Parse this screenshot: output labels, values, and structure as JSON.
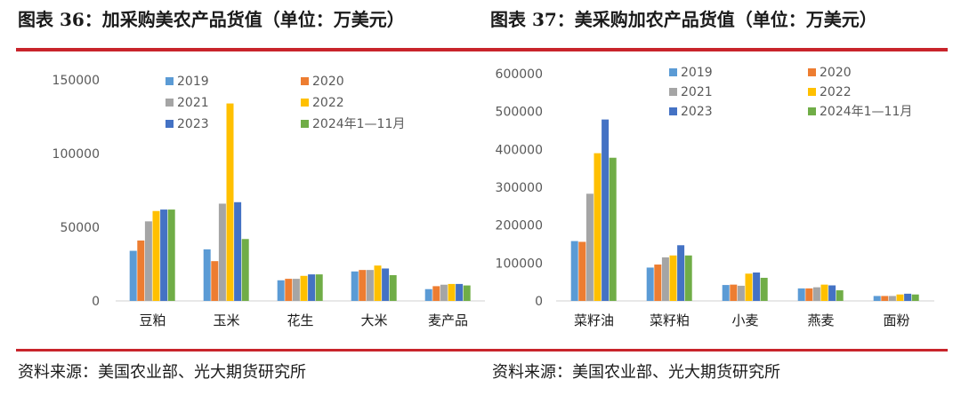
{
  "colors": {
    "accent_rule": "#c8242b",
    "series": [
      "#5b9bd5",
      "#ed7d31",
      "#a5a5a5",
      "#ffc000",
      "#4472c4",
      "#70ad47"
    ]
  },
  "charts": [
    {
      "title": "图表 36：加采购美农产品货值（单位：万美元）",
      "source": "资料来源：美国农业部、光大期货研究所"
    },
    {
      "title": "图表 37：美采购加农产品货值（单位：万美元）",
      "source": "资料来源：美国农业部、光大期货研究所"
    }
  ],
  "chart_data": [
    {
      "type": "bar",
      "title": "图表 36：加采购美农产品货值（单位：万美元）",
      "categories": [
        "豆粕",
        "玉米",
        "花生",
        "大米",
        "麦产品"
      ],
      "ylim": [
        0,
        150000
      ],
      "yticks": [
        "0",
        "50000",
        "100000",
        "150000"
      ],
      "legend_placement": "top",
      "grid": false,
      "series": [
        {
          "name": "2019",
          "values": [
            34000,
            35000,
            14000,
            20000,
            8000
          ]
        },
        {
          "name": "2020",
          "values": [
            41000,
            27000,
            15000,
            21000,
            10000
          ]
        },
        {
          "name": "2021",
          "values": [
            54000,
            66000,
            15000,
            21000,
            11000
          ]
        },
        {
          "name": "2022",
          "values": [
            61000,
            134000,
            17000,
            24000,
            11500
          ]
        },
        {
          "name": "2023",
          "values": [
            62000,
            67000,
            18000,
            22000,
            11500
          ]
        },
        {
          "name": "2024年1—11月",
          "values": [
            62000,
            42000,
            18000,
            17500,
            10500
          ]
        }
      ]
    },
    {
      "type": "bar",
      "title": "图表 37：美采购加农产品货值（单位：万美元）",
      "categories": [
        "菜籽油",
        "菜籽粕",
        "小麦",
        "燕麦",
        "面粉"
      ],
      "ylim": [
        0,
        600000
      ],
      "yticks": [
        "0",
        "100000",
        "200000",
        "300000",
        "400000",
        "500000",
        "600000"
      ],
      "legend_placement": "top",
      "grid": false,
      "series": [
        {
          "name": "2019",
          "values": [
            158000,
            88000,
            42000,
            33000,
            13000
          ]
        },
        {
          "name": "2020",
          "values": [
            156000,
            96000,
            43000,
            33000,
            13000
          ]
        },
        {
          "name": "2021",
          "values": [
            283000,
            115000,
            40000,
            36000,
            13000
          ]
        },
        {
          "name": "2022",
          "values": [
            390000,
            120000,
            72000,
            43000,
            17000
          ]
        },
        {
          "name": "2023",
          "values": [
            479000,
            147000,
            75000,
            41000,
            19000
          ]
        },
        {
          "name": "2024年1—11月",
          "values": [
            378000,
            120000,
            61000,
            28000,
            17000
          ]
        }
      ]
    }
  ]
}
